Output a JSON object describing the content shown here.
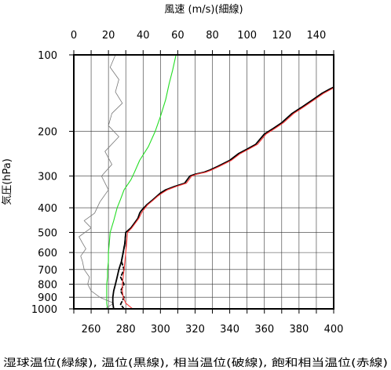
{
  "chart_data": {
    "type": "line",
    "title": "",
    "top_axis_label": "風速 (m/s)(細線)",
    "xlabel": "湿球温位(緑線), 温位(黒線), 相当温位(破線), 飽和相当温位(赤線)",
    "ylabel": "気圧(hPa)",
    "x_range": [
      250,
      400
    ],
    "x_ticks": [
      260,
      280,
      300,
      320,
      340,
      360,
      380,
      400
    ],
    "wind_range": [
      0,
      150
    ],
    "wind_ticks": [
      0,
      20,
      40,
      60,
      80,
      100,
      120,
      140
    ],
    "y_range": [
      1000,
      100
    ],
    "y_scale": "log",
    "y_ticks": [
      100,
      200,
      300,
      400,
      500,
      600,
      700,
      800,
      900,
      1000
    ],
    "grid": true,
    "series": [
      {
        "name": "湿球温位",
        "color": "#22dd22",
        "style": "solid",
        "axis": "temperature",
        "points": [
          [
            269.5,
            1000
          ],
          [
            269,
            950
          ],
          [
            269,
            900
          ],
          [
            269,
            850
          ],
          [
            269,
            800
          ],
          [
            269.5,
            750
          ],
          [
            269.5,
            700
          ],
          [
            270,
            650
          ],
          [
            270,
            600
          ],
          [
            270.5,
            550
          ],
          [
            271,
            500
          ],
          [
            273,
            450
          ],
          [
            275,
            400
          ],
          [
            277,
            370
          ],
          [
            279,
            340
          ],
          [
            283,
            310
          ],
          [
            285,
            290
          ],
          [
            288,
            260
          ],
          [
            293,
            230
          ],
          [
            297,
            200
          ],
          [
            300,
            175
          ],
          [
            303,
            150
          ],
          [
            305,
            130
          ],
          [
            307,
            115
          ],
          [
            309,
            100
          ]
        ]
      },
      {
        "name": "風速",
        "color": "#777777",
        "style": "thin",
        "axis": "wind",
        "points": [
          [
            19,
            990
          ],
          [
            23,
            950
          ],
          [
            15,
            900
          ],
          [
            10,
            850
          ],
          [
            8,
            800
          ],
          [
            9,
            750
          ],
          [
            6,
            700
          ],
          [
            5,
            650
          ],
          [
            4,
            620
          ],
          [
            7,
            580
          ],
          [
            5,
            550
          ],
          [
            3,
            520
          ],
          [
            10,
            480
          ],
          [
            6,
            450
          ],
          [
            12,
            420
          ],
          [
            15,
            380
          ],
          [
            20,
            340
          ],
          [
            16,
            300
          ],
          [
            22,
            270
          ],
          [
            18,
            240
          ],
          [
            26,
            210
          ],
          [
            20,
            190
          ],
          [
            22,
            170
          ],
          [
            28,
            155
          ],
          [
            24,
            140
          ],
          [
            26,
            125
          ],
          [
            21,
            112
          ],
          [
            24,
            100
          ]
        ]
      },
      {
        "name": "温位",
        "color": "#000000",
        "style": "solid",
        "axis": "temperature",
        "points": [
          [
            273,
            1000
          ],
          [
            272.5,
            950
          ],
          [
            272.5,
            900
          ],
          [
            273,
            850
          ],
          [
            274,
            800
          ],
          [
            275,
            750
          ],
          [
            276,
            700
          ],
          [
            277.5,
            650
          ],
          [
            278.5,
            600
          ],
          [
            279.5,
            550
          ],
          [
            280,
            500
          ],
          [
            283,
            480
          ],
          [
            285,
            460
          ],
          [
            287,
            440
          ],
          [
            288,
            420
          ],
          [
            289,
            410
          ],
          [
            292,
            390
          ],
          [
            295,
            375
          ],
          [
            298,
            360
          ],
          [
            300,
            350
          ],
          [
            303,
            340
          ],
          [
            308,
            330
          ],
          [
            314,
            320
          ],
          [
            317,
            300
          ],
          [
            320,
            295
          ],
          [
            325,
            290
          ],
          [
            328,
            285
          ],
          [
            333,
            275
          ],
          [
            340,
            260
          ],
          [
            345,
            245
          ],
          [
            350,
            235
          ],
          [
            355,
            225
          ],
          [
            360,
            205
          ],
          [
            365,
            195
          ],
          [
            370,
            185
          ],
          [
            376,
            170
          ],
          [
            382,
            160
          ],
          [
            388,
            150
          ],
          [
            393,
            142
          ],
          [
            398,
            136
          ],
          [
            400,
            134
          ]
        ]
      },
      {
        "name": "相当温位",
        "color": "#000000",
        "style": "dashed",
        "axis": "temperature",
        "points": [
          [
            279,
            1000
          ],
          [
            277,
            960
          ],
          [
            279,
            900
          ],
          [
            277,
            850
          ],
          [
            279,
            800
          ],
          [
            277,
            750
          ],
          [
            279,
            700
          ],
          [
            277.5,
            650
          ],
          [
            278.5,
            600
          ],
          [
            279.5,
            550
          ],
          [
            280,
            500
          ]
        ]
      },
      {
        "name": "飽和相当温位",
        "color": "#ff3333",
        "style": "solid",
        "axis": "temperature",
        "points": [
          [
            284,
            1000
          ],
          [
            280,
            950
          ],
          [
            278.5,
            900
          ],
          [
            278,
            850
          ],
          [
            278,
            800
          ],
          [
            278.5,
            750
          ],
          [
            279,
            700
          ],
          [
            279.5,
            650
          ],
          [
            280,
            600
          ],
          [
            280.5,
            550
          ],
          [
            281,
            500
          ],
          [
            283.5,
            480
          ],
          [
            285.5,
            460
          ],
          [
            287.5,
            440
          ],
          [
            289,
            420
          ],
          [
            290,
            410
          ],
          [
            292.5,
            390
          ],
          [
            295.5,
            375
          ],
          [
            298.5,
            360
          ],
          [
            301,
            350
          ],
          [
            304,
            340
          ],
          [
            309,
            330
          ],
          [
            315,
            320
          ],
          [
            318,
            300
          ],
          [
            321,
            295
          ],
          [
            326,
            290
          ],
          [
            329,
            285
          ],
          [
            334,
            275
          ],
          [
            341,
            260
          ],
          [
            346,
            245
          ],
          [
            351,
            235
          ],
          [
            356,
            225
          ],
          [
            361,
            205
          ],
          [
            366,
            195
          ],
          [
            371,
            185
          ],
          [
            377,
            170
          ],
          [
            383,
            160
          ],
          [
            389,
            150
          ],
          [
            394,
            142
          ],
          [
            399,
            136
          ],
          [
            400,
            135
          ]
        ]
      }
    ]
  }
}
